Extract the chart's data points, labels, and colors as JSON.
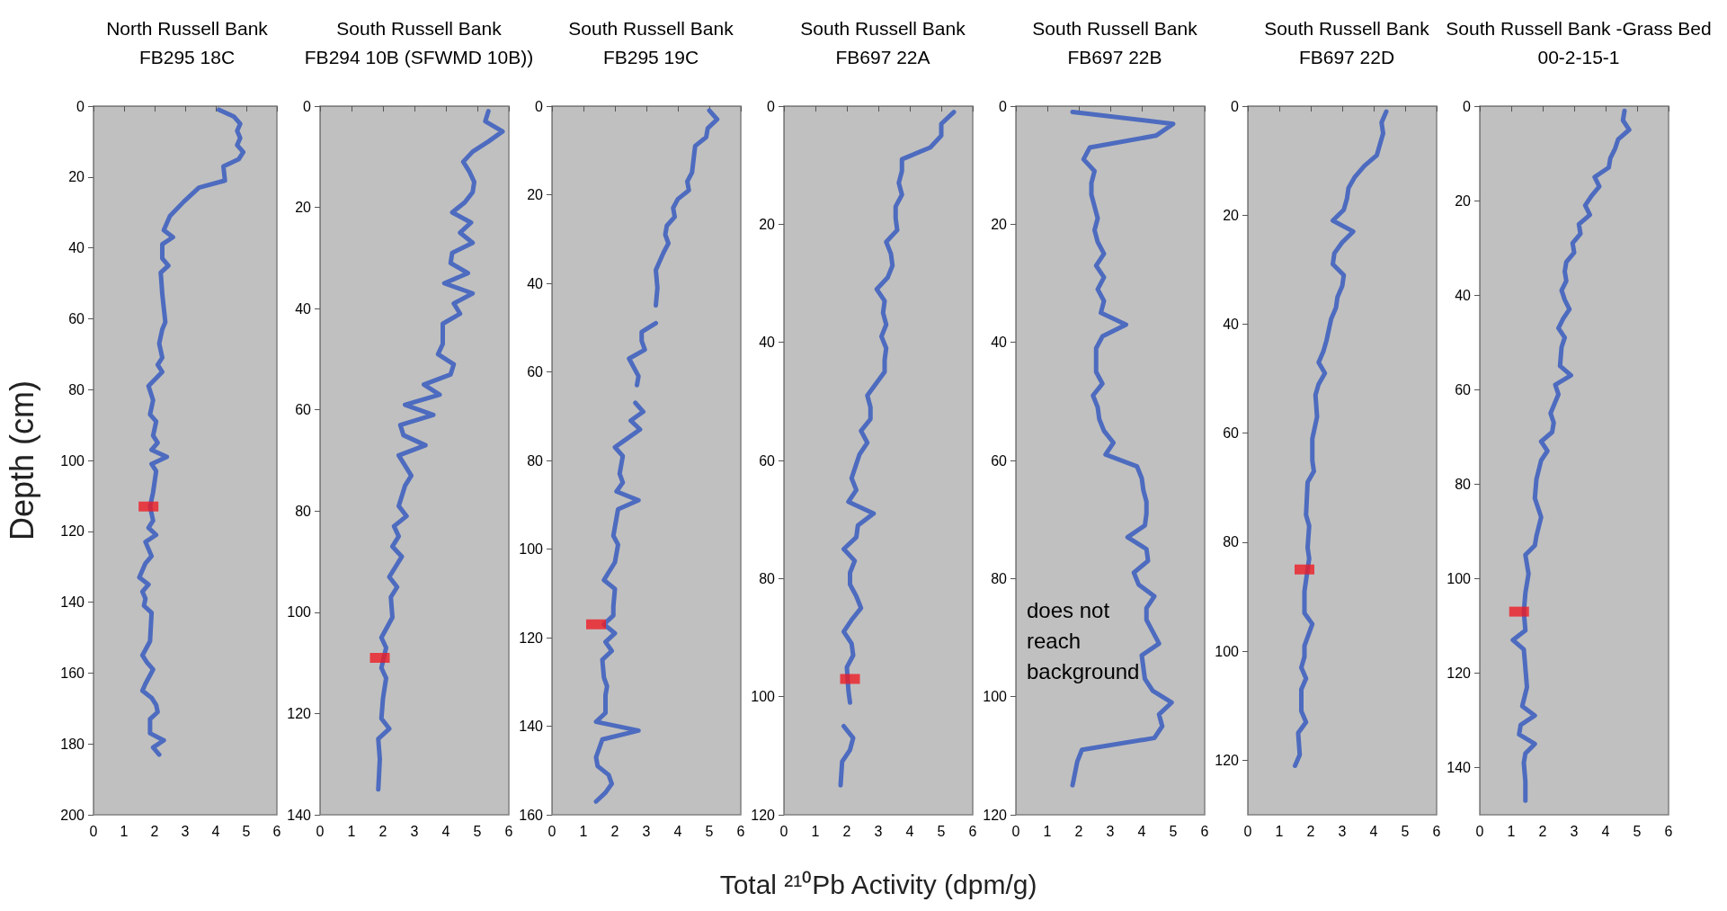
{
  "chart_data": [
    {
      "type": "line",
      "title": "North Russell Bank\nFB295 18C",
      "ylabel": "Depth (cm)",
      "marker": "none",
      "grid": false,
      "xlim": [
        0,
        6
      ],
      "xticks": [
        0,
        1,
        2,
        3,
        4,
        5,
        6
      ],
      "ylim": [
        200,
        0
      ],
      "yticks": [
        0,
        20,
        40,
        60,
        80,
        100,
        120,
        140,
        160,
        180,
        200
      ],
      "series": [
        {
          "type": "line",
          "color": "#4d6bbf",
          "x": [
            4.1,
            4.6,
            4.8,
            4.7,
            4.8,
            4.7,
            4.9,
            4.75,
            4.25,
            4.3,
            3.45,
            2.95,
            2.5,
            2.3,
            2.6,
            2.25,
            2.25,
            2.45,
            2.2,
            2.25,
            2.3,
            2.35,
            2.25,
            2.15,
            2.25,
            2.1,
            2.25,
            1.8,
            1.95,
            1.85,
            2.05,
            1.95,
            2.1,
            1.9,
            2.4,
            1.9,
            2.05,
            1.95,
            1.85,
            1.95,
            1.8,
            2.05,
            1.7,
            1.9,
            1.7,
            1.5,
            1.8,
            1.6,
            1.7,
            1.65,
            1.9,
            1.85,
            1.6,
            1.75,
            1.95,
            1.7,
            1.6,
            1.9,
            2.05,
            2.1,
            1.85,
            1.85,
            2.3,
            1.95,
            2.15
          ],
          "values": [
            1,
            3,
            5,
            7,
            9,
            11,
            13,
            15,
            17,
            21,
            23,
            27,
            31,
            35,
            37,
            39,
            43,
            45,
            47,
            53,
            57,
            61,
            63,
            67,
            71,
            73,
            75,
            79,
            83,
            87,
            89,
            93,
            95,
            97,
            99,
            101,
            103,
            109,
            113,
            117,
            119,
            121,
            123,
            127,
            129,
            133,
            135,
            137,
            139,
            141,
            143,
            151,
            155,
            157,
            159,
            163,
            165,
            167,
            169,
            171,
            173,
            177,
            179,
            181,
            183
          ]
        },
        {
          "type": "scatter",
          "marker": "square",
          "color": "#ed1c24",
          "x": [
            1.8
          ],
          "values": [
            113
          ]
        }
      ]
    },
    {
      "type": "line",
      "title": "South Russell Bank\nFB294 10B (SFWMD 10B))",
      "marker": "none",
      "grid": false,
      "xlim": [
        0,
        6
      ],
      "xticks": [
        0,
        1,
        2,
        3,
        4,
        5,
        6
      ],
      "ylim": [
        140,
        0
      ],
      "yticks": [
        0,
        20,
        40,
        60,
        80,
        100,
        120,
        140
      ],
      "series": [
        {
          "type": "line",
          "color": "#4d6bbf",
          "x": [
            5.35,
            5.25,
            5.8,
            5.35,
            4.85,
            4.55,
            4.75,
            4.9,
            4.85,
            4.6,
            4.2,
            4.8,
            4.45,
            4.85,
            4.2,
            4.15,
            4.7,
            3.95,
            4.85,
            4.25,
            4.45,
            3.9,
            3.9,
            3.75,
            4.25,
            4.15,
            3.3,
            3.8,
            2.7,
            3.6,
            2.55,
            2.65,
            3.35,
            2.5,
            2.9,
            2.7,
            2.5,
            2.75,
            2.35,
            2.5,
            2.3,
            2.6,
            2.2,
            2.45,
            2.25,
            2.3,
            1.95,
            2.1,
            1.95,
            2.1,
            2.0,
            1.95,
            2.2,
            1.85,
            1.9,
            1.85
          ],
          "values": [
            1,
            3,
            5,
            7,
            9,
            11,
            13,
            15,
            17,
            19,
            21,
            23,
            25,
            27,
            29,
            31,
            33,
            35,
            37,
            39,
            41,
            43,
            47,
            49,
            51,
            53,
            55,
            57,
            59,
            61,
            63,
            65,
            67,
            69,
            73,
            75,
            79,
            81,
            83,
            85,
            87,
            89,
            93,
            95,
            97,
            101,
            105,
            107,
            111,
            113,
            117,
            121,
            123,
            125,
            129,
            135
          ]
        },
        {
          "type": "scatter",
          "marker": "square",
          "color": "#ed1c24",
          "x": [
            1.9
          ],
          "values": [
            109
          ]
        }
      ]
    },
    {
      "type": "line",
      "title": "South Russell Bank\nFB295 19C",
      "marker": "none",
      "grid": false,
      "xlim": [
        0,
        6
      ],
      "xticks": [
        0,
        1,
        2,
        3,
        4,
        5,
        6
      ],
      "ylim": [
        160,
        0
      ],
      "yticks": [
        0,
        20,
        40,
        60,
        80,
        100,
        120,
        140,
        160
      ],
      "series": [
        {
          "type": "line",
          "color": "#4d6bbf",
          "x": [
            5.0,
            5.25,
            4.95,
            4.9,
            4.55,
            4.45,
            4.3,
            4.35,
            4.0,
            3.85,
            3.9,
            3.65,
            3.6,
            3.7,
            3.55,
            3.3,
            3.35,
            3.3,
            null,
            3.3,
            2.85,
            2.85,
            2.95,
            2.45,
            2.75,
            2.7,
            null,
            2.65,
            2.9,
            2.5,
            2.8,
            2.4,
            2.0,
            2.25,
            2.15,
            2.25,
            2.05,
            2.75,
            2.1,
            2.05,
            1.95,
            2.1,
            2.0,
            1.65,
            2.0,
            1.95,
            1.95,
            1.65,
            2.0,
            1.7,
            1.9,
            1.6,
            1.65,
            1.75,
            1.7,
            1.7,
            1.4,
            2.75,
            1.6,
            1.4,
            1.45,
            1.8,
            1.9,
            1.7,
            1.4
          ],
          "values": [
            1,
            3,
            5,
            7,
            9,
            15,
            17,
            19,
            21,
            23,
            25,
            27,
            29,
            31,
            33,
            37,
            41,
            45,
            null,
            49,
            51,
            53,
            55,
            57,
            61,
            63,
            null,
            67,
            69,
            71,
            73,
            75,
            77,
            79,
            83,
            85,
            87,
            89,
            91,
            93,
            97,
            99,
            103,
            107,
            109,
            113,
            115,
            117,
            119,
            121,
            123,
            125,
            129,
            131,
            133,
            137,
            139,
            141,
            143,
            147,
            149,
            151,
            153,
            155,
            157
          ]
        },
        {
          "type": "scatter",
          "marker": "square",
          "color": "#ed1c24",
          "x": [
            1.4
          ],
          "values": [
            117
          ]
        }
      ]
    },
    {
      "type": "line",
      "title": "South Russell Bank\nFB697 22A",
      "xlabel": "Total ²¹⁰Pb Activity (dpm/g)",
      "marker": "none",
      "grid": false,
      "xlim": [
        0,
        6
      ],
      "xticks": [
        0,
        1,
        2,
        3,
        4,
        5,
        6
      ],
      "ylim": [
        120,
        0
      ],
      "yticks": [
        0,
        20,
        40,
        60,
        80,
        100,
        120
      ],
      "series": [
        {
          "type": "line",
          "color": "#4d6bbf",
          "x": [
            5.4,
            5.0,
            5.0,
            4.65,
            3.75,
            3.75,
            3.65,
            3.75,
            3.55,
            3.55,
            3.6,
            3.25,
            3.4,
            3.45,
            3.3,
            2.95,
            3.2,
            3.15,
            3.25,
            3.1,
            3.25,
            3.2,
            3.2,
            2.65,
            2.75,
            2.75,
            2.45,
            2.65,
            2.4,
            2.15,
            2.3,
            2.05,
            2.85,
            2.35,
            2.3,
            1.9,
            2.25,
            2.1,
            2.1,
            2.3,
            2.45,
            2.15,
            1.9,
            2.15,
            2.2,
            2.0,
            2.05,
            2.1,
            null,
            1.9,
            2.2,
            2.1,
            1.85,
            1.8
          ],
          "values": [
            1,
            3,
            5,
            7,
            9,
            11,
            13,
            15,
            17,
            19,
            21,
            23,
            25,
            27,
            29,
            31,
            33,
            35,
            37,
            39,
            41,
            43,
            45,
            49,
            51,
            53,
            55,
            57,
            59,
            63,
            65,
            67,
            69,
            71,
            73,
            75,
            77,
            79,
            81,
            83,
            85,
            87,
            89,
            91,
            93,
            95,
            99,
            101,
            null,
            105,
            107,
            109,
            111,
            115
          ]
        },
        {
          "type": "scatter",
          "marker": "square",
          "color": "#ed1c24",
          "x": [
            2.1
          ],
          "values": [
            97
          ]
        }
      ]
    },
    {
      "type": "line",
      "title": "South Russell Bank\nFB697 22B",
      "annotations": [
        "does not reach background"
      ],
      "marker": "none",
      "grid": false,
      "xlim": [
        0,
        6
      ],
      "xticks": [
        0,
        1,
        2,
        3,
        4,
        5,
        6
      ],
      "ylim": [
        120,
        0
      ],
      "yticks": [
        0,
        20,
        40,
        60,
        80,
        100,
        120
      ],
      "series": [
        {
          "type": "line",
          "color": "#4d6bbf",
          "x": [
            1.8,
            5.0,
            4.45,
            2.35,
            2.15,
            2.5,
            2.4,
            2.4,
            2.5,
            2.6,
            2.5,
            2.6,
            2.8,
            2.55,
            2.8,
            2.6,
            2.8,
            2.7,
            3.5,
            2.75,
            2.55,
            2.55,
            2.75,
            2.45,
            2.6,
            2.65,
            2.8,
            3.1,
            2.85,
            3.85,
            4.0,
            4.05,
            4.15,
            4.15,
            4.1,
            3.55,
            4.15,
            4.2,
            3.75,
            3.9,
            4.4,
            4.15,
            4.15,
            4.35,
            4.55,
            4.0,
            4.1,
            4.35,
            4.95,
            4.55,
            4.65,
            4.4,
            2.1,
            1.95,
            1.8
          ],
          "values": [
            1,
            3,
            5,
            7,
            9,
            11,
            13,
            15,
            17,
            19,
            21,
            23,
            25,
            27,
            29,
            31,
            33,
            35,
            37,
            39,
            41,
            45,
            47,
            49,
            51,
            53,
            55,
            57,
            59,
            61,
            63,
            65,
            67,
            69,
            71,
            73,
            75,
            77,
            79,
            81,
            83,
            85,
            87,
            89,
            91,
            93,
            97,
            99,
            101,
            103,
            105,
            107,
            109,
            111,
            115
          ]
        }
      ]
    },
    {
      "type": "line",
      "title": "South Russell Bank\nFB697 22D",
      "marker": "none",
      "grid": false,
      "xlim": [
        0,
        6
      ],
      "xticks": [
        0,
        1,
        2,
        3,
        4,
        5,
        6
      ],
      "ylim": [
        130,
        0
      ],
      "yticks": [
        0,
        20,
        40,
        60,
        80,
        100,
        120
      ],
      "series": [
        {
          "type": "line",
          "color": "#4d6bbf",
          "x": [
            4.4,
            4.25,
            4.3,
            4.1,
            3.7,
            3.4,
            3.2,
            3.15,
            3.05,
            2.7,
            3.35,
            3.0,
            2.75,
            2.7,
            3.05,
            3.0,
            2.85,
            2.8,
            2.65,
            2.5,
            2.4,
            2.25,
            2.45,
            2.25,
            2.15,
            2.2,
            2.05,
            2.05,
            2.1,
            1.9,
            1.85,
            1.95,
            1.9,
            1.95,
            1.8,
            1.8,
            2.05,
            1.8,
            1.8,
            1.7,
            1.85,
            1.7,
            1.7,
            1.85,
            1.6,
            1.65,
            1.5
          ],
          "values": [
            1,
            3,
            5,
            9,
            11,
            13,
            15,
            17,
            19,
            21,
            23,
            25,
            27,
            29,
            31,
            33,
            35,
            37,
            39,
            43,
            45,
            47,
            49,
            51,
            53,
            57,
            61,
            65,
            67,
            69,
            75,
            77,
            81,
            83,
            89,
            93,
            95,
            99,
            101,
            103,
            105,
            107,
            111,
            113,
            115,
            119,
            121
          ]
        },
        {
          "type": "scatter",
          "marker": "square",
          "color": "#ed1c24",
          "x": [
            1.8
          ],
          "values": [
            85
          ]
        }
      ]
    },
    {
      "type": "line",
      "title": "South Russell Bank -Grass Bed\n00-2-15-1",
      "marker": "none",
      "grid": false,
      "xlim": [
        0,
        6
      ],
      "xticks": [
        0,
        1,
        2,
        3,
        4,
        5,
        6
      ],
      "ylim": [
        150,
        0
      ],
      "yticks": [
        0,
        20,
        40,
        60,
        80,
        100,
        120,
        140
      ],
      "series": [
        {
          "type": "line",
          "color": "#4d6bbf",
          "x": [
            4.6,
            4.55,
            4.75,
            4.4,
            4.3,
            4.15,
            4.1,
            3.65,
            3.8,
            3.55,
            3.35,
            3.5,
            3.15,
            3.2,
            2.95,
            3.0,
            2.75,
            2.7,
            2.75,
            2.6,
            2.7,
            2.85,
            2.65,
            2.5,
            2.7,
            2.6,
            2.55,
            2.9,
            2.4,
            2.5,
            2.25,
            2.35,
            2.3,
            1.95,
            2.15,
            1.95,
            1.8,
            1.75,
            1.95,
            1.8,
            1.75,
            1.45,
            1.55,
            1.45,
            1.4,
            1.45,
            1.05,
            1.4,
            1.45,
            1.5,
            1.35,
            1.75,
            1.3,
            1.25,
            1.75,
            1.45,
            1.4,
            1.45,
            1.45
          ],
          "values": [
            1,
            3,
            5,
            7,
            9,
            11,
            13,
            15,
            17,
            19,
            21,
            23,
            25,
            27,
            29,
            31,
            33,
            35,
            37,
            39,
            41,
            43,
            45,
            47,
            49,
            51,
            55,
            57,
            59,
            61,
            65,
            67,
            69,
            71,
            73,
            75,
            79,
            83,
            87,
            91,
            93,
            95,
            99,
            103,
            107,
            111,
            113,
            115,
            119,
            123,
            127,
            129,
            131,
            133,
            135,
            137,
            139,
            143,
            147
          ]
        },
        {
          "type": "scatter",
          "marker": "square",
          "color": "#ed1c24",
          "x": [
            1.25
          ],
          "values": [
            107
          ]
        }
      ]
    }
  ]
}
